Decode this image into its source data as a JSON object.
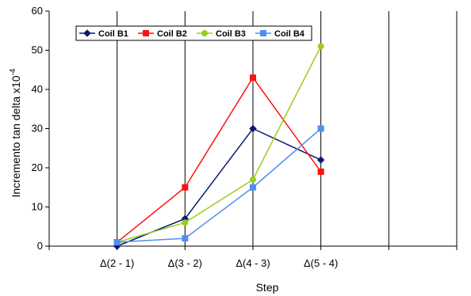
{
  "chart_data": {
    "type": "line",
    "categories": [
      "Δ(2 - 1)",
      "Δ(3 - 2)",
      "Δ(4 - 3)",
      "Δ(5 - 4)"
    ],
    "x_range_slots": [
      0,
      6
    ],
    "category_slots": [
      1,
      2,
      3,
      4
    ],
    "series": [
      {
        "name": "Coil  B1",
        "values": [
          0,
          7,
          30,
          22
        ],
        "color": "#0a1a6e",
        "marker": "diamond"
      },
      {
        "name": "Coil  B2",
        "values": [
          1,
          15,
          43,
          19
        ],
        "color": "#ff1010",
        "marker": "square"
      },
      {
        "name": "Coil  B3",
        "values": [
          1,
          6,
          17,
          51
        ],
        "color": "#9acd1e",
        "marker": "circle"
      },
      {
        "name": "Coil  B4",
        "values": [
          1,
          2,
          15,
          30
        ],
        "color": "#4f8ff0",
        "marker": "square"
      }
    ],
    "xlabel": "Step",
    "ylabel": "Incremento tan delta  x10",
    "ylabel_exponent": "-4",
    "ylim": [
      0,
      60
    ],
    "yticks": [
      0,
      10,
      20,
      30,
      40,
      50,
      60
    ],
    "grid": "vertical",
    "legend": "top-left"
  }
}
